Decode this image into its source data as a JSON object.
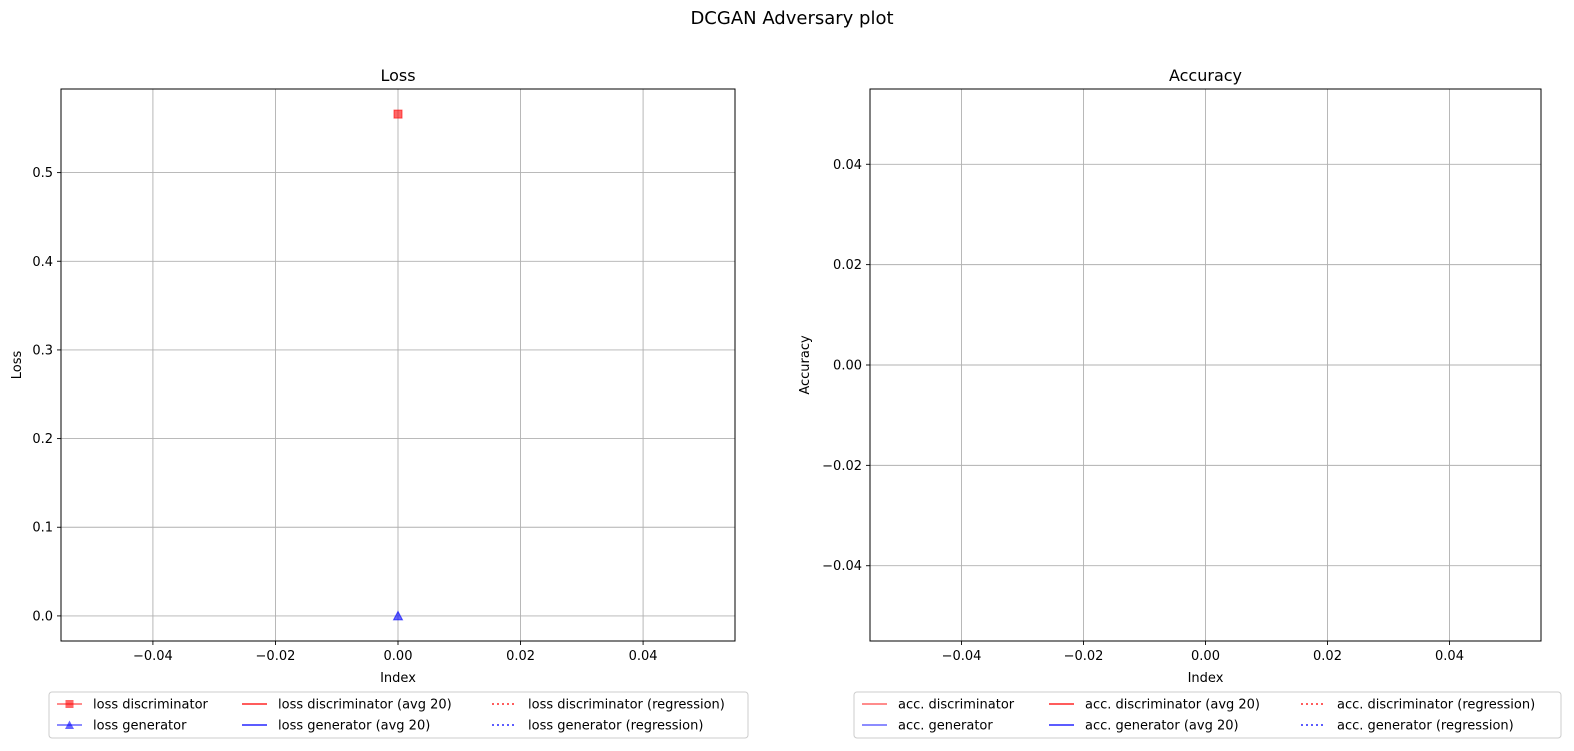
{
  "suptitle": "DCGAN Adversary plot",
  "colors": {
    "red": "#ff0000",
    "blue": "#0000ff",
    "grid": "#b0b0b0",
    "axes": "#000000"
  },
  "chart_data": [
    {
      "type": "line",
      "title": "Loss",
      "xlabel": "Index",
      "ylabel": "Loss",
      "xlim": [
        -0.055,
        0.055
      ],
      "ylim": [
        -0.0283,
        0.5943
      ],
      "xticks": [
        -0.04,
        -0.02,
        0.0,
        0.02,
        0.04
      ],
      "xtick_labels": [
        "−0.04",
        "−0.02",
        "0.00",
        "0.02",
        "0.04"
      ],
      "yticks": [
        0.0,
        0.1,
        0.2,
        0.3,
        0.4,
        0.5
      ],
      "ytick_labels": [
        "0.0",
        "0.1",
        "0.2",
        "0.3",
        "0.4",
        "0.5"
      ],
      "grid": true,
      "legend_position": "below",
      "series": [
        {
          "name": "loss discriminator",
          "x": [
            0
          ],
          "y": [
            0.566
          ],
          "color": "#ff0000",
          "marker": "square",
          "linestyle": "solid",
          "alpha": 0.6
        },
        {
          "name": "loss generator",
          "x": [
            0
          ],
          "y": [
            0.0
          ],
          "color": "#0000ff",
          "marker": "triangle",
          "linestyle": "solid",
          "alpha": 0.6
        },
        {
          "name": "loss discriminator (avg 20)",
          "x": [],
          "y": [],
          "color": "#ff0000",
          "marker": "none",
          "linestyle": "solid",
          "alpha": 0.85
        },
        {
          "name": "loss generator (avg 20)",
          "x": [],
          "y": [],
          "color": "#0000ff",
          "marker": "none",
          "linestyle": "solid",
          "alpha": 0.85
        },
        {
          "name": "loss discriminator (regression)",
          "x": [],
          "y": [],
          "color": "#ff0000",
          "marker": "none",
          "linestyle": "dotted",
          "alpha": 0.85
        },
        {
          "name": "loss generator (regression)",
          "x": [],
          "y": [],
          "color": "#0000ff",
          "marker": "none",
          "linestyle": "dotted",
          "alpha": 0.85
        }
      ]
    },
    {
      "type": "line",
      "title": "Accuracy",
      "xlabel": "Index",
      "ylabel": "Accuracy",
      "xlim": [
        -0.055,
        0.055
      ],
      "ylim": [
        -0.055,
        0.055
      ],
      "xticks": [
        -0.04,
        -0.02,
        0.0,
        0.02,
        0.04
      ],
      "xtick_labels": [
        "−0.04",
        "−0.02",
        "0.00",
        "0.02",
        "0.04"
      ],
      "yticks": [
        -0.04,
        -0.02,
        0.0,
        0.02,
        0.04
      ],
      "ytick_labels": [
        "−0.04",
        "−0.02",
        "0.00",
        "0.02",
        "0.04"
      ],
      "grid": true,
      "legend_position": "below",
      "series": [
        {
          "name": "acc. discriminator",
          "x": [],
          "y": [],
          "color": "#ff0000",
          "marker": "none",
          "linestyle": "solid",
          "alpha": 0.6
        },
        {
          "name": "acc. generator",
          "x": [],
          "y": [],
          "color": "#0000ff",
          "marker": "none",
          "linestyle": "solid",
          "alpha": 0.6
        },
        {
          "name": "acc. discriminator (avg 20)",
          "x": [],
          "y": [],
          "color": "#ff0000",
          "marker": "none",
          "linestyle": "solid",
          "alpha": 0.85
        },
        {
          "name": "acc. generator (avg 20)",
          "x": [],
          "y": [],
          "color": "#0000ff",
          "marker": "none",
          "linestyle": "solid",
          "alpha": 0.85
        },
        {
          "name": "acc. discriminator (regression)",
          "x": [],
          "y": [],
          "color": "#ff0000",
          "marker": "none",
          "linestyle": "dotted",
          "alpha": 0.85
        },
        {
          "name": "acc. generator (regression)",
          "x": [],
          "y": [],
          "color": "#0000ff",
          "marker": "none",
          "linestyle": "dotted",
          "alpha": 0.85
        }
      ]
    }
  ]
}
